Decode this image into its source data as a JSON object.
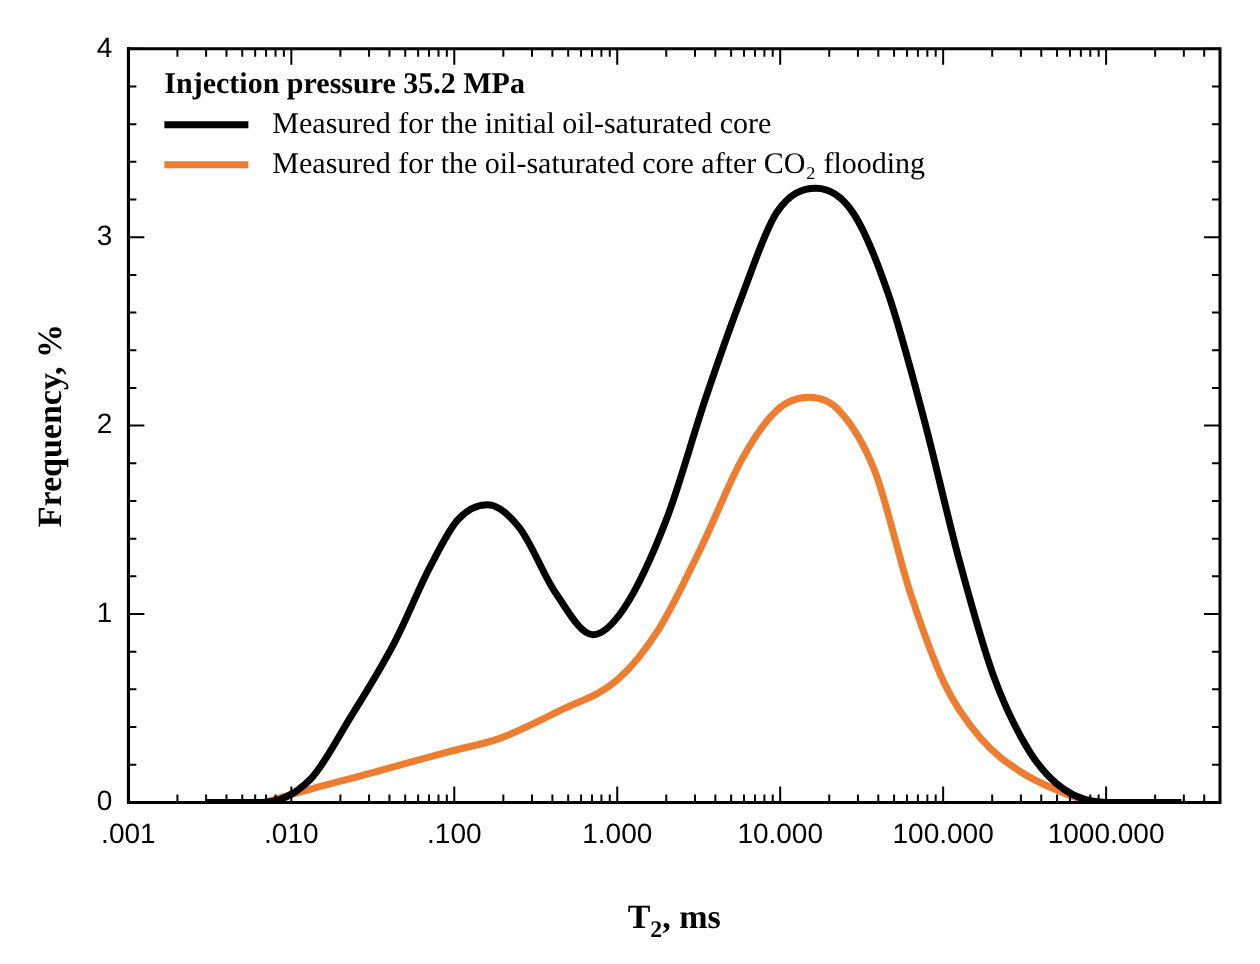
{
  "chart_data": {
    "type": "line",
    "xlabel": "T$_{2}$, ms",
    "ylabel": "Frequency, %",
    "legend_title": "Injection pressure 35.2 MPa",
    "legend": "top left",
    "log": "x",
    "xlim": [
      0.001,
      5000
    ],
    "ylim": [
      0,
      4
    ],
    "xticks": [
      {
        "value": 0.001,
        "label": ".001"
      },
      {
        "value": 0.002,
        "label": null
      },
      {
        "value": 0.003,
        "label": null
      },
      {
        "value": 0.004,
        "label": null
      },
      {
        "value": 0.005,
        "label": null
      },
      {
        "value": 0.006,
        "label": null
      },
      {
        "value": 0.007,
        "label": null
      },
      {
        "value": 0.008,
        "label": null
      },
      {
        "value": 0.009,
        "label": null
      },
      {
        "value": 0.01,
        "label": ".010"
      },
      {
        "value": 0.02,
        "label": null
      },
      {
        "value": 0.03,
        "label": null
      },
      {
        "value": 0.04,
        "label": null
      },
      {
        "value": 0.05,
        "label": null
      },
      {
        "value": 0.06,
        "label": null
      },
      {
        "value": 0.07,
        "label": null
      },
      {
        "value": 0.08,
        "label": null
      },
      {
        "value": 0.09,
        "label": null
      },
      {
        "value": 0.1,
        "label": ".100"
      },
      {
        "value": 0.2,
        "label": null
      },
      {
        "value": 0.3,
        "label": null
      },
      {
        "value": 0.4,
        "label": null
      },
      {
        "value": 0.5,
        "label": null
      },
      {
        "value": 0.6,
        "label": null
      },
      {
        "value": 0.7,
        "label": null
      },
      {
        "value": 0.8,
        "label": null
      },
      {
        "value": 0.9,
        "label": null
      },
      {
        "value": 1,
        "label": "1.000"
      },
      {
        "value": 2,
        "label": null
      },
      {
        "value": 3,
        "label": null
      },
      {
        "value": 4,
        "label": null
      },
      {
        "value": 5,
        "label": null
      },
      {
        "value": 6,
        "label": null
      },
      {
        "value": 7,
        "label": null
      },
      {
        "value": 8,
        "label": null
      },
      {
        "value": 9,
        "label": null
      },
      {
        "value": 10,
        "label": "10.000"
      },
      {
        "value": 20,
        "label": null
      },
      {
        "value": 30,
        "label": null
      },
      {
        "value": 40,
        "label": null
      },
      {
        "value": 50,
        "label": null
      },
      {
        "value": 60,
        "label": null
      },
      {
        "value": 70,
        "label": null
      },
      {
        "value": 80,
        "label": null
      },
      {
        "value": 90,
        "label": null
      },
      {
        "value": 100,
        "label": "100.000"
      },
      {
        "value": 200,
        "label": null
      },
      {
        "value": 300,
        "label": null
      },
      {
        "value": 400,
        "label": null
      },
      {
        "value": 500,
        "label": null
      },
      {
        "value": 600,
        "label": null
      },
      {
        "value": 700,
        "label": null
      },
      {
        "value": 800,
        "label": null
      },
      {
        "value": 900,
        "label": null
      },
      {
        "value": 1000,
        "label": "1000.000"
      },
      {
        "value": 2000,
        "label": null
      },
      {
        "value": 3000,
        "label": null
      },
      {
        "value": 4000,
        "label": null
      }
    ],
    "yticks": [
      0,
      {
        "value": 0.2,
        "label": null
      },
      {
        "value": 0.4,
        "label": null
      },
      {
        "value": 0.6,
        "label": null
      },
      {
        "value": 0.8,
        "label": null
      },
      1,
      {
        "value": 1.2,
        "label": null
      },
      {
        "value": 1.4,
        "label": null
      },
      {
        "value": 1.6,
        "label": null
      },
      {
        "value": 1.8,
        "label": null
      },
      2,
      {
        "value": 2.2,
        "label": null
      },
      {
        "value": 2.4,
        "label": null
      },
      {
        "value": 2.6,
        "label": null
      },
      {
        "value": 2.8,
        "label": null
      },
      3,
      {
        "value": 3.2,
        "label": null
      },
      {
        "value": 3.4,
        "label": null
      },
      {
        "value": 3.6,
        "label": null
      },
      {
        "value": 3.8,
        "label": null
      },
      4
    ],
    "series": [
      {
        "name": "Measured for the initial oil-saturated core",
        "color": "#000000",
        "x": [
          0.003,
          0.0066,
          0.013,
          0.023,
          0.043,
          0.071,
          0.105,
          0.16,
          0.25,
          0.42,
          0.71,
          1.1,
          2.0,
          3.5,
          5.9,
          9.5,
          16.6,
          28,
          46,
          76,
          126,
          204,
          339,
          550,
          1000,
          2900
        ],
        "values": [
          0,
          0,
          0.12,
          0.45,
          0.85,
          1.25,
          1.5,
          1.58,
          1.46,
          1.11,
          0.89,
          1.03,
          1.5,
          2.15,
          2.7,
          3.13,
          3.26,
          3.13,
          2.7,
          2.04,
          1.28,
          0.67,
          0.27,
          0.07,
          0,
          0
        ]
      },
      {
        "name": "Measured for the oil-saturated core after CO₂ flooding",
        "color": "#ed7d31",
        "x": [
          0.0069,
          0.0098,
          0.032,
          0.093,
          0.19,
          0.45,
          1.0,
          1.8,
          3.3,
          5.9,
          9.5,
          15,
          23,
          38,
          63,
          102,
          170,
          302,
          550,
          810
        ],
        "values": [
          0,
          0.04,
          0.16,
          0.27,
          0.34,
          0.49,
          0.65,
          0.92,
          1.36,
          1.83,
          2.08,
          2.15,
          2.08,
          1.76,
          1.11,
          0.63,
          0.34,
          0.16,
          0.05,
          0
        ]
      }
    ]
  }
}
